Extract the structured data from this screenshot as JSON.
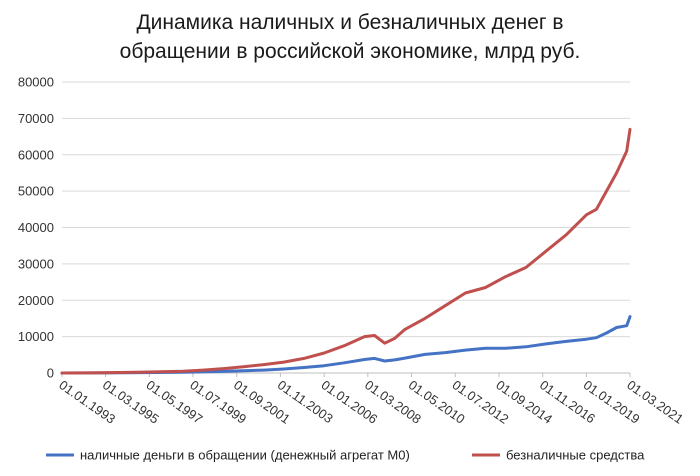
{
  "chart_data": {
    "type": "line",
    "title_lines": [
      "Динамика наличных и безналичных денег в",
      "обращении в российской экономике, млрд руб."
    ],
    "xlabel": "",
    "ylabel": "",
    "ylim": [
      0,
      80000
    ],
    "yticks": [
      0,
      10000,
      20000,
      30000,
      40000,
      50000,
      60000,
      70000,
      80000
    ],
    "yticks_labels": [
      "0",
      "10000",
      "20000",
      "30000",
      "40000",
      "50000",
      "60000",
      "70000",
      "80000"
    ],
    "xlim": [
      "1993-01-01",
      "2021-03-01"
    ],
    "xtick_labels": [
      "01.01.1993",
      "01.03.1995",
      "01.05.1997",
      "01.07.1999",
      "01.09.2001",
      "01.11.2003",
      "01.01.2006",
      "01.03.2008",
      "01.05.2010",
      "01.07.2012",
      "01.09.2014",
      "01.11.2016",
      "01.01.2019",
      "01.03.2021"
    ],
    "xtick_dates": [
      "1993-01-01",
      "1995-03-01",
      "1997-05-01",
      "1999-07-01",
      "2001-09-01",
      "2003-11-01",
      "2006-01-01",
      "2008-03-01",
      "2010-05-01",
      "2012-07-01",
      "2014-09-01",
      "2016-11-01",
      "2019-01-01",
      "2021-03-01"
    ],
    "grid": "horizontal",
    "legend_position": "bottom",
    "series": [
      {
        "name": "наличные деньги в обращении (денежный агрегат М0)",
        "color": "#4472c4",
        "points": [
          [
            "1993-01-01",
            2
          ],
          [
            "1995-01-01",
            30
          ],
          [
            "1997-01-01",
            100
          ],
          [
            "1999-01-01",
            200
          ],
          [
            "2000-01-01",
            300
          ],
          [
            "2001-01-01",
            450
          ],
          [
            "2002-01-01",
            600
          ],
          [
            "2003-01-01",
            800
          ],
          [
            "2004-01-01",
            1100
          ],
          [
            "2005-01-01",
            1500
          ],
          [
            "2006-01-01",
            2000
          ],
          [
            "2007-01-01",
            2800
          ],
          [
            "2008-01-01",
            3700
          ],
          [
            "2008-07-01",
            4000
          ],
          [
            "2009-01-01",
            3300
          ],
          [
            "2009-07-01",
            3600
          ],
          [
            "2010-01-01",
            4100
          ],
          [
            "2011-01-01",
            5100
          ],
          [
            "2012-01-01",
            5600
          ],
          [
            "2013-01-01",
            6300
          ],
          [
            "2014-01-01",
            6800
          ],
          [
            "2015-01-01",
            6800
          ],
          [
            "2016-01-01",
            7200
          ],
          [
            "2017-01-01",
            8000
          ],
          [
            "2018-01-01",
            8700
          ],
          [
            "2019-01-01",
            9300
          ],
          [
            "2019-07-01",
            9700
          ],
          [
            "2020-01-01",
            11000
          ],
          [
            "2020-07-01",
            12500
          ],
          [
            "2021-01-01",
            13000
          ],
          [
            "2021-03-01",
            15500
          ]
        ]
      },
      {
        "name": "безналичные средства",
        "color": "#c0504d",
        "points": [
          [
            "1993-01-01",
            5
          ],
          [
            "1995-01-01",
            80
          ],
          [
            "1997-01-01",
            250
          ],
          [
            "1999-01-01",
            500
          ],
          [
            "2000-01-01",
            800
          ],
          [
            "2001-01-01",
            1200
          ],
          [
            "2002-01-01",
            1700
          ],
          [
            "2003-01-01",
            2300
          ],
          [
            "2004-01-01",
            3000
          ],
          [
            "2005-01-01",
            4000
          ],
          [
            "2006-01-01",
            5500
          ],
          [
            "2007-01-01",
            7500
          ],
          [
            "2008-01-01",
            10000
          ],
          [
            "2008-07-01",
            10300
          ],
          [
            "2009-01-01",
            8200
          ],
          [
            "2009-07-01",
            9500
          ],
          [
            "2010-01-01",
            12000
          ],
          [
            "2011-01-01",
            15000
          ],
          [
            "2012-01-01",
            18500
          ],
          [
            "2013-01-01",
            22000
          ],
          [
            "2014-01-01",
            23500
          ],
          [
            "2015-01-01",
            26500
          ],
          [
            "2016-01-01",
            29000
          ],
          [
            "2017-01-01",
            33500
          ],
          [
            "2018-01-01",
            38000
          ],
          [
            "2019-01-01",
            43500
          ],
          [
            "2019-07-01",
            45000
          ],
          [
            "2020-01-01",
            50000
          ],
          [
            "2020-07-01",
            55000
          ],
          [
            "2021-01-01",
            61000
          ],
          [
            "2021-03-01",
            67000
          ]
        ]
      }
    ]
  }
}
